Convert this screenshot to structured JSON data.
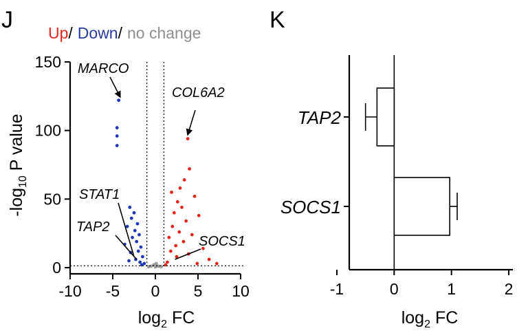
{
  "panels": {
    "left_letter": "J",
    "right_letter": "K"
  },
  "legend": {
    "up": "Up",
    "down": "Down",
    "no_change": "no change",
    "separator": "/"
  },
  "colors": {
    "up": "#e8251f",
    "down": "#1f37b5",
    "no_change": "#9a9a9a",
    "down_legend": "#2a3aa0",
    "no_change_legend": "#8f8f8f"
  },
  "volcano": {
    "xlabel_main": "log",
    "xlabel_sub": "2",
    "xlabel_tail": " FC",
    "ylabel_pre": "-log",
    "ylabel_sub": "10",
    "ylabel_tail": " P value",
    "x_ticks": [
      "-10",
      "-5",
      "0",
      "5",
      "10"
    ],
    "y_ticks": [
      "0",
      "50",
      "100",
      "150"
    ],
    "annotations": [
      {
        "label": "MARCO",
        "x": -4.3,
        "y": 122
      },
      {
        "label": "COL6A2",
        "x": 3.8,
        "y": 94
      },
      {
        "label": "STAT1",
        "x": -2.5,
        "y": 8
      },
      {
        "label": "TAP2",
        "x": -2.2,
        "y": 6
      },
      {
        "label": "SOCS1",
        "x": 2.3,
        "y": 6
      }
    ]
  },
  "barpanel": {
    "xlabel_main": "log",
    "xlabel_sub": "2",
    "xlabel_tail": " FC",
    "x_ticks": [
      "-1",
      "0",
      "1",
      "2"
    ],
    "categories": [
      "TAP2",
      "SOCS1"
    ]
  },
  "chart_data": [
    {
      "type": "scatter",
      "title": "",
      "xlabel": "log2 FC",
      "ylabel": "-log10 P value",
      "xlim": [
        -10,
        10
      ],
      "ylim": [
        0,
        150
      ],
      "thresholds": {
        "x": [
          -1,
          1
        ],
        "y": 1.3
      },
      "legend": [
        "Up",
        "Down",
        "no change"
      ],
      "series": [
        {
          "name": "Down",
          "points": [
            [
              -4.3,
              122
            ],
            [
              -4.5,
              102
            ],
            [
              -4.5,
              96
            ],
            [
              -4.5,
              89
            ],
            [
              -3.0,
              44
            ],
            [
              -2.5,
              40
            ],
            [
              -2.8,
              36
            ],
            [
              -2.1,
              32
            ],
            [
              -3.3,
              30
            ],
            [
              -2.4,
              27
            ],
            [
              -1.9,
              24
            ],
            [
              -2.7,
              22
            ],
            [
              -2.2,
              19
            ],
            [
              -3.6,
              17
            ],
            [
              -1.7,
              15
            ],
            [
              -2.0,
              12
            ],
            [
              -2.9,
              11
            ],
            [
              -1.5,
              8
            ],
            [
              -2.3,
              6
            ],
            [
              -1.8,
              4
            ],
            [
              -1.3,
              3
            ],
            [
              -3.1,
              5
            ],
            [
              -1.6,
              2
            ]
          ]
        },
        {
          "name": "Up",
          "points": [
            [
              3.8,
              94
            ],
            [
              4.0,
              72
            ],
            [
              3.4,
              64
            ],
            [
              2.9,
              58
            ],
            [
              1.9,
              55
            ],
            [
              4.6,
              52
            ],
            [
              2.6,
              48
            ],
            [
              3.1,
              44
            ],
            [
              2.2,
              40
            ],
            [
              5.1,
              38
            ],
            [
              3.6,
              34
            ],
            [
              2.0,
              30
            ],
            [
              2.8,
              26
            ],
            [
              4.3,
              24
            ],
            [
              1.6,
              22
            ],
            [
              3.3,
              19
            ],
            [
              2.4,
              16
            ],
            [
              5.6,
              14
            ],
            [
              1.8,
              12
            ],
            [
              3.9,
              10
            ],
            [
              2.5,
              8
            ],
            [
              6.3,
              6
            ],
            [
              1.4,
              4
            ],
            [
              4.9,
              3
            ],
            [
              1.2,
              2
            ],
            [
              7.2,
              3
            ]
          ]
        },
        {
          "name": "no change",
          "points": [
            [
              -0.2,
              2
            ],
            [
              0.1,
              3
            ],
            [
              -0.5,
              1
            ],
            [
              0.4,
              1
            ],
            [
              0.0,
              0.5
            ],
            [
              -0.8,
              0.6
            ],
            [
              0.7,
              0.8
            ],
            [
              0.2,
              1.2
            ]
          ]
        }
      ]
    },
    {
      "type": "bar",
      "orientation": "horizontal",
      "title": "",
      "xlabel": "log2 FC",
      "xlim": [
        -1,
        2
      ],
      "categories": [
        "TAP2",
        "SOCS1"
      ],
      "values": [
        -0.3,
        0.97
      ],
      "errors": [
        0.2,
        0.13
      ]
    }
  ]
}
